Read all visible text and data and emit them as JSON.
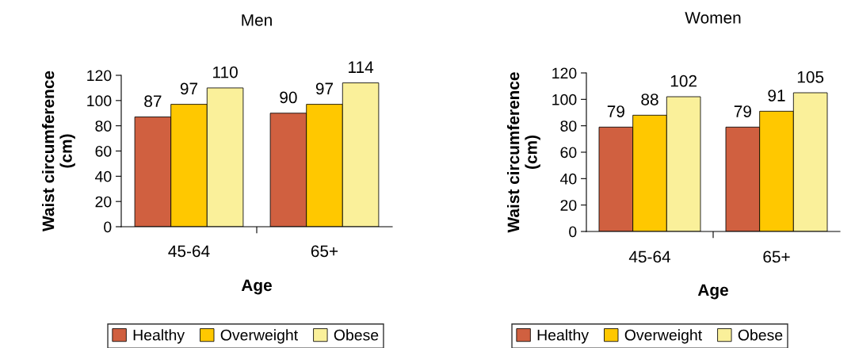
{
  "chart_data": [
    {
      "type": "bar",
      "title": "Men",
      "xlabel": "Age",
      "ylabel": "Waist circumference\n(cm)",
      "categories": [
        "45-64",
        "65+"
      ],
      "series": [
        {
          "name": "Healthy",
          "color": "#d06040",
          "values": [
            87,
            90
          ]
        },
        {
          "name": "Overweight",
          "color": "#ffc800",
          "values": [
            97,
            97
          ]
        },
        {
          "name": "Obese",
          "color": "#faf09a",
          "values": [
            110,
            114
          ]
        }
      ],
      "ylim": [
        0,
        120
      ],
      "yticks": [
        0,
        20,
        40,
        60,
        80,
        100,
        120
      ],
      "data_labels": true,
      "grid": false,
      "legend": "bottom"
    },
    {
      "type": "bar",
      "title": "Women",
      "xlabel": "Age",
      "ylabel": "Waist circumference\n(cm)",
      "categories": [
        "45-64",
        "65+"
      ],
      "series": [
        {
          "name": "Healthy",
          "color": "#d06040",
          "values": [
            79,
            79
          ]
        },
        {
          "name": "Overweight",
          "color": "#ffc800",
          "values": [
            88,
            91
          ]
        },
        {
          "name": "Obese",
          "color": "#faf09a",
          "values": [
            102,
            105
          ]
        }
      ],
      "ylim": [
        0,
        120
      ],
      "yticks": [
        0,
        20,
        40,
        60,
        80,
        100,
        120
      ],
      "data_labels": true,
      "grid": false,
      "legend": "bottom"
    }
  ]
}
